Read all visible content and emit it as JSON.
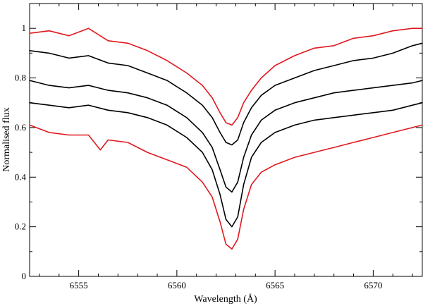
{
  "chart_data": {
    "type": "line",
    "title": "",
    "xlabel": "Wavelength (Å)",
    "ylabel": "Normalised flux",
    "xlim": [
      6552.5,
      6572.5
    ],
    "ylim": [
      0,
      1.1
    ],
    "xticks": [
      6555,
      6560,
      6565,
      6570
    ],
    "yticks": [
      0,
      0.2,
      0.4,
      0.6,
      0.8,
      1
    ],
    "ytick_labels": [
      "0",
      "0.2",
      "0.4",
      "0.6",
      "0.8",
      "1"
    ],
    "grid": false,
    "legend": "none",
    "series": [
      {
        "color": "#e0191f",
        "x": [
          6552.5,
          6553.5,
          6554.5,
          6555.5,
          6556.5,
          6557.5,
          6558.5,
          6559.5,
          6560.5,
          6561.3,
          6561.8,
          6562.2,
          6562.5,
          6562.8,
          6563.1,
          6563.4,
          6563.8,
          6564.3,
          6565.0,
          6566.0,
          6567.0,
          6568.0,
          6569.0,
          6570.0,
          6571.0,
          6572.0,
          6572.5
        ],
        "y": [
          0.98,
          0.99,
          0.97,
          1.0,
          0.95,
          0.94,
          0.91,
          0.87,
          0.82,
          0.77,
          0.72,
          0.66,
          0.62,
          0.61,
          0.64,
          0.7,
          0.75,
          0.8,
          0.85,
          0.89,
          0.92,
          0.93,
          0.96,
          0.97,
          0.99,
          1.0,
          1.0
        ]
      },
      {
        "color": "#000000",
        "x": [
          6552.5,
          6553.5,
          6554.5,
          6555.5,
          6556.5,
          6557.5,
          6558.5,
          6559.5,
          6560.5,
          6561.3,
          6561.8,
          6562.2,
          6562.5,
          6562.8,
          6563.1,
          6563.4,
          6563.8,
          6564.3,
          6565.0,
          6566.0,
          6567.0,
          6568.0,
          6569.0,
          6570.0,
          6571.0,
          6572.0,
          6572.5
        ],
        "y": [
          0.91,
          0.9,
          0.88,
          0.89,
          0.86,
          0.85,
          0.82,
          0.79,
          0.74,
          0.69,
          0.64,
          0.58,
          0.54,
          0.53,
          0.55,
          0.62,
          0.68,
          0.73,
          0.77,
          0.8,
          0.83,
          0.85,
          0.87,
          0.88,
          0.9,
          0.93,
          0.94
        ]
      },
      {
        "color": "#000000",
        "x": [
          6552.5,
          6553.5,
          6554.5,
          6555.5,
          6556.5,
          6557.5,
          6558.5,
          6559.5,
          6560.5,
          6561.3,
          6561.8,
          6562.2,
          6562.5,
          6562.8,
          6563.1,
          6563.4,
          6563.8,
          6564.3,
          6565.0,
          6566.0,
          6567.0,
          6568.0,
          6569.0,
          6570.0,
          6571.0,
          6572.0,
          6572.5
        ],
        "y": [
          0.79,
          0.77,
          0.76,
          0.77,
          0.75,
          0.74,
          0.72,
          0.69,
          0.64,
          0.58,
          0.52,
          0.43,
          0.36,
          0.34,
          0.38,
          0.48,
          0.57,
          0.63,
          0.67,
          0.7,
          0.72,
          0.74,
          0.75,
          0.76,
          0.77,
          0.78,
          0.79
        ]
      },
      {
        "color": "#000000",
        "x": [
          6552.5,
          6553.5,
          6554.5,
          6555.5,
          6556.5,
          6557.5,
          6558.5,
          6559.5,
          6560.5,
          6561.3,
          6561.8,
          6562.2,
          6562.5,
          6562.8,
          6563.1,
          6563.4,
          6563.8,
          6564.3,
          6565.0,
          6566.0,
          6567.0,
          6568.0,
          6569.0,
          6570.0,
          6571.0,
          6572.0,
          6572.5
        ],
        "y": [
          0.7,
          0.69,
          0.68,
          0.69,
          0.67,
          0.66,
          0.64,
          0.61,
          0.56,
          0.5,
          0.43,
          0.33,
          0.23,
          0.2,
          0.24,
          0.37,
          0.48,
          0.54,
          0.58,
          0.61,
          0.63,
          0.64,
          0.65,
          0.66,
          0.67,
          0.69,
          0.7
        ]
      },
      {
        "color": "#e0191f",
        "x": [
          6552.5,
          6553.5,
          6554.5,
          6555.5,
          6556.1,
          6556.5,
          6557.5,
          6558.5,
          6559.5,
          6560.5,
          6561.3,
          6561.8,
          6562.2,
          6562.5,
          6562.8,
          6563.1,
          6563.4,
          6563.8,
          6564.3,
          6565.0,
          6566.0,
          6567.0,
          6568.0,
          6569.0,
          6570.0,
          6571.0,
          6572.0,
          6572.5
        ],
        "y": [
          0.61,
          0.58,
          0.57,
          0.57,
          0.51,
          0.55,
          0.54,
          0.5,
          0.47,
          0.44,
          0.38,
          0.32,
          0.22,
          0.13,
          0.11,
          0.15,
          0.27,
          0.37,
          0.42,
          0.45,
          0.48,
          0.5,
          0.52,
          0.54,
          0.56,
          0.58,
          0.6,
          0.61
        ]
      }
    ]
  }
}
